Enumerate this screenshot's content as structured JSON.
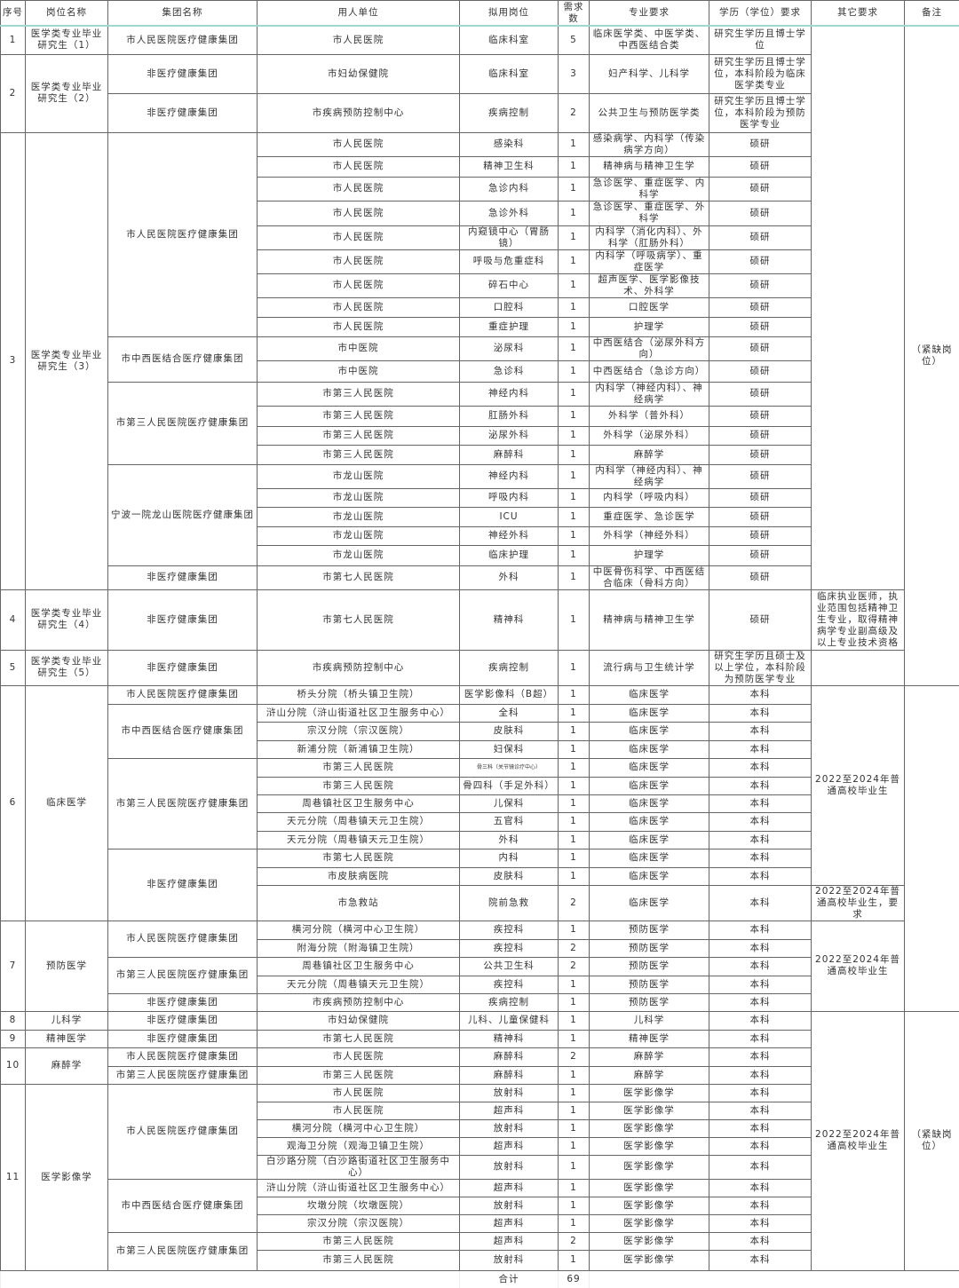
{
  "headers": [
    "序号",
    "岗位名称",
    "集团名称",
    "用人单位",
    "拟用岗位",
    "需求数",
    "专业要求",
    "学历（学位）要求",
    "其它要求",
    "备注"
  ],
  "jobs": [
    {
      "no": "1",
      "position": "医学类专业毕业研究生（1）",
      "groups": [
        {
          "name": "市人民医院医疗健康集团",
          "rows": [
            {
              "unit": "市人民医院",
              "post": "临床科室",
              "count": "5",
              "major": "临床医学类、中医学类、中西医结合类",
              "degree": "研究生学历且博士学位"
            }
          ]
        }
      ]
    },
    {
      "no": "2",
      "position": "医学类专业毕业研究生（2）",
      "groups": [
        {
          "name": "非医疗健康集团",
          "rows": [
            {
              "unit": "市妇幼保健院",
              "post": "临床科室",
              "count": "3",
              "major": "妇产科学、儿科学",
              "degree": "研究生学历且博士学位，本科阶段为临床医学类专业"
            }
          ]
        },
        {
          "name": "非医疗健康集团",
          "rows": [
            {
              "unit": "市疾病预防控制中心",
              "post": "疾病控制",
              "count": "2",
              "major": "公共卫生与预防医学类",
              "degree": "研究生学历且博士学位，本科阶段为预防医学专业"
            }
          ]
        }
      ]
    },
    {
      "no": "3",
      "position": "医学类专业毕业研究生（3）",
      "groups": [
        {
          "name": "市人民医院医疗健康集团",
          "rows": [
            {
              "unit": "市人民医院",
              "post": "感染科",
              "count": "1",
              "major": "感染病学、内科学（传染病学方向）",
              "degree": "硕研"
            },
            {
              "unit": "市人民医院",
              "post": "精神卫生科",
              "count": "1",
              "major": "精神病与精神卫生学",
              "degree": "硕研"
            },
            {
              "unit": "市人民医院",
              "post": "急诊内科",
              "count": "1",
              "major": "急诊医学、重症医学、内科学",
              "degree": "硕研"
            },
            {
              "unit": "市人民医院",
              "post": "急诊外科",
              "count": "1",
              "major": "急诊医学、重症医学、外科学",
              "degree": "硕研"
            },
            {
              "unit": "市人民医院",
              "post": "内窥镜中心（胃肠镜）",
              "count": "1",
              "major": "内科学（消化内科）、外科学（肛肠外科）",
              "degree": "硕研"
            },
            {
              "unit": "市人民医院",
              "post": "呼吸与危重症科",
              "count": "1",
              "major": "内科学（呼吸病学）、重症医学",
              "degree": "硕研"
            },
            {
              "unit": "市人民医院",
              "post": "碎石中心",
              "count": "1",
              "major": "超声医学、医学影像技术、外科学",
              "degree": "硕研"
            },
            {
              "unit": "市人民医院",
              "post": "口腔科",
              "count": "1",
              "major": "口腔医学",
              "degree": "硕研"
            },
            {
              "unit": "市人民医院",
              "post": "重症护理",
              "count": "1",
              "major": "护理学",
              "degree": "硕研"
            }
          ]
        },
        {
          "name": "市中西医结合医疗健康集团",
          "rows": [
            {
              "unit": "市中医院",
              "post": "泌尿科",
              "count": "1",
              "major": "中西医结合（泌尿外科方向）",
              "degree": "硕研"
            },
            {
              "unit": "市中医院",
              "post": "急诊科",
              "count": "1",
              "major": "中西医结合（急诊方向）",
              "degree": "硕研"
            }
          ]
        },
        {
          "name": "市第三人民医院医疗健康集团",
          "rows": [
            {
              "unit": "市第三人民医院",
              "post": "神经内科",
              "count": "1",
              "major": "内科学（神经内科）、神经病学",
              "degree": "硕研"
            },
            {
              "unit": "市第三人民医院",
              "post": "肛肠外科",
              "count": "1",
              "major": "外科学（普外科）",
              "degree": "硕研"
            },
            {
              "unit": "市第三人民医院",
              "post": "泌尿外科",
              "count": "1",
              "major": "外科学（泌尿外科）",
              "degree": "硕研"
            },
            {
              "unit": "市第三人民医院",
              "post": "麻醉科",
              "count": "1",
              "major": "麻醉学",
              "degree": "硕研"
            }
          ]
        },
        {
          "name": "宁波一院龙山医院医疗健康集团",
          "rows": [
            {
              "unit": "市龙山医院",
              "post": "神经内科",
              "count": "1",
              "major": "内科学（神经内科）、神经病学",
              "degree": "硕研"
            },
            {
              "unit": "市龙山医院",
              "post": "呼吸内科",
              "count": "1",
              "major": "内科学（呼吸内科）",
              "degree": "硕研"
            },
            {
              "unit": "市龙山医院",
              "post": "ICU",
              "count": "1",
              "major": "重症医学、急诊医学",
              "degree": "硕研"
            },
            {
              "unit": "市龙山医院",
              "post": "神经外科",
              "count": "1",
              "major": "外科学（神经外科）",
              "degree": "硕研"
            },
            {
              "unit": "市龙山医院",
              "post": "临床护理",
              "count": "1",
              "major": "护理学",
              "degree": "硕研"
            }
          ]
        },
        {
          "name": "非医疗健康集团",
          "rows": [
            {
              "unit": "市第七人民医院",
              "post": "外科",
              "count": "1",
              "major": "中医骨伤科学、中西医结合临床（骨科方向）",
              "degree": "硕研"
            }
          ]
        }
      ]
    },
    {
      "no": "4",
      "position": "医学类专业毕业研究生（4）",
      "groups": [
        {
          "name": "非医疗健康集团",
          "rows": [
            {
              "unit": "市第七人民医院",
              "post": "精神科",
              "count": "1",
              "major": "精神病与精神卫生学",
              "degree": "硕研"
            }
          ]
        }
      ]
    },
    {
      "no": "5",
      "position": "医学类专业毕业研究生（5）",
      "groups": [
        {
          "name": "非医疗健康集团",
          "rows": [
            {
              "unit": "市疾病预防控制中心",
              "post": "疾病控制",
              "count": "1",
              "major": "流行病与卫生统计学",
              "degree": "研究生学历且硕士及以上学位，本科阶段为预防医学专业"
            }
          ]
        }
      ]
    },
    {
      "no": "6",
      "position": "临床医学",
      "groups": [
        {
          "name": "市人民医院医疗健康集团",
          "rows": [
            {
              "unit": "桥头分院（桥头镇卫生院）",
              "post": "医学影像科（B超）",
              "count": "1",
              "major": "临床医学",
              "degree": "本科"
            }
          ]
        },
        {
          "name": "市中西医结合医疗健康集团",
          "rows": [
            {
              "unit": "浒山分院（浒山街道社区卫生服务中心）",
              "post": "全科",
              "count": "1",
              "major": "临床医学",
              "degree": "本科"
            },
            {
              "unit": "宗汉分院（宗汉医院）",
              "post": "皮肤科",
              "count": "1",
              "major": "临床医学",
              "degree": "本科"
            },
            {
              "unit": "新浦分院（新浦镇卫生院）",
              "post": "妇保科",
              "count": "1",
              "major": "临床医学",
              "degree": "本科"
            }
          ]
        },
        {
          "name": "市第三人民医院医疗健康集团",
          "rows": [
            {
              "unit": "市第三人民医院",
              "post": "骨三科（关节镜诊疗中心）",
              "count": "1",
              "major": "临床医学",
              "degree": "本科",
              "small": true
            },
            {
              "unit": "市第三人民医院",
              "post": "骨四科（手足外科）",
              "count": "1",
              "major": "临床医学",
              "degree": "本科"
            },
            {
              "unit": "周巷镇社区卫生服务中心",
              "post": "儿保科",
              "count": "1",
              "major": "临床医学",
              "degree": "本科"
            },
            {
              "unit": "天元分院（周巷镇天元卫生院）",
              "post": "五官科",
              "count": "1",
              "major": "临床医学",
              "degree": "本科"
            },
            {
              "unit": "天元分院（周巷镇天元卫生院）",
              "post": "外科",
              "count": "1",
              "major": "临床医学",
              "degree": "本科"
            }
          ]
        },
        {
          "name": "非医疗健康集团",
          "rows": [
            {
              "unit": "市第七人民医院",
              "post": "内科",
              "count": "1",
              "major": "临床医学",
              "degree": "本科"
            },
            {
              "unit": "市皮肤病医院",
              "post": "皮肤科",
              "count": "1",
              "major": "临床医学",
              "degree": "本科"
            },
            {
              "unit": "市急救站",
              "post": "院前急救",
              "count": "2",
              "major": "临床医学",
              "degree": "本科"
            }
          ]
        }
      ]
    },
    {
      "no": "7",
      "position": "预防医学",
      "groups": [
        {
          "name": "市人民医院医疗健康集团",
          "rows": [
            {
              "unit": "横河分院（横河中心卫生院）",
              "post": "疾控科",
              "count": "1",
              "major": "预防医学",
              "degree": "本科"
            },
            {
              "unit": "附海分院（附海镇卫生院）",
              "post": "疾控科",
              "count": "2",
              "major": "预防医学",
              "degree": "本科"
            }
          ]
        },
        {
          "name": "市第三人民医院医疗健康集团",
          "rows": [
            {
              "unit": "周巷镇社区卫生服务中心",
              "post": "公共卫生科",
              "count": "2",
              "major": "预防医学",
              "degree": "本科"
            },
            {
              "unit": "天元分院（周巷镇天元卫生院）",
              "post": "疾控科",
              "count": "1",
              "major": "预防医学",
              "degree": "本科"
            }
          ]
        },
        {
          "name": "非医疗健康集团",
          "rows": [
            {
              "unit": "市疾病预防控制中心",
              "post": "疾病控制",
              "count": "1",
              "major": "预防医学",
              "degree": "本科"
            }
          ]
        }
      ]
    },
    {
      "no": "8",
      "position": "儿科学",
      "groups": [
        {
          "name": "非医疗健康集团",
          "rows": [
            {
              "unit": "市妇幼保健院",
              "post": "儿科、儿童保健科",
              "count": "1",
              "major": "儿科学",
              "degree": "本科"
            }
          ]
        }
      ]
    },
    {
      "no": "9",
      "position": "精神医学",
      "groups": [
        {
          "name": "非医疗健康集团",
          "rows": [
            {
              "unit": "市第七人民医院",
              "post": "精神科",
              "count": "1",
              "major": "精神医学",
              "degree": "本科"
            }
          ]
        }
      ]
    },
    {
      "no": "10",
      "position": "麻醉学",
      "groups": [
        {
          "name": "市人民医院医疗健康集团",
          "rows": [
            {
              "unit": "市人民医院",
              "post": "麻醉科",
              "count": "2",
              "major": "麻醉学",
              "degree": "本科"
            }
          ]
        },
        {
          "name": "市第三人民医院医疗健康集团",
          "rows": [
            {
              "unit": "市第三人民医院",
              "post": "麻醉科",
              "count": "1",
              "major": "麻醉学",
              "degree": "本科"
            }
          ]
        }
      ]
    },
    {
      "no": "11",
      "position": "医学影像学",
      "groups": [
        {
          "name": "市人民医院医疗健康集团",
          "rows": [
            {
              "unit": "市人民医院",
              "post": "放射科",
              "count": "1",
              "major": "医学影像学",
              "degree": "本科"
            },
            {
              "unit": "市人民医院",
              "post": "超声科",
              "count": "1",
              "major": "医学影像学",
              "degree": "本科"
            },
            {
              "unit": "横河分院（横河中心卫生院）",
              "post": "放射科",
              "count": "1",
              "major": "医学影像学",
              "degree": "本科"
            },
            {
              "unit": "观海卫分院（观海卫镇卫生院）",
              "post": "超声科",
              "count": "1",
              "major": "医学影像学",
              "degree": "本科"
            },
            {
              "unit": "白沙路分院（白沙路街道社区卫生服务中心）",
              "post": "放射科",
              "count": "1",
              "major": "医学影像学",
              "degree": "本科"
            }
          ]
        },
        {
          "name": "市中西医结合医疗健康集团",
          "rows": [
            {
              "unit": "浒山分院（浒山街道社区卫生服务中心）",
              "post": "超声科",
              "count": "1",
              "major": "医学影像学",
              "degree": "本科"
            },
            {
              "unit": "坎墩分院（坎墩医院）",
              "post": "放射科",
              "count": "1",
              "major": "医学影像学",
              "degree": "本科"
            },
            {
              "unit": "宗汉分院（宗汉医院）",
              "post": "超声科",
              "count": "1",
              "major": "医学影像学",
              "degree": "本科"
            }
          ]
        },
        {
          "name": "市第三人民医院医疗健康集团",
          "rows": [
            {
              "unit": "市第三人民医院",
              "post": "超声科",
              "count": "2",
              "major": "医学影像学",
              "degree": "本科"
            },
            {
              "unit": "市第三人民医院",
              "post": "放射科",
              "count": "1",
              "major": "医学影像学",
              "degree": "本科"
            }
          ]
        }
      ]
    }
  ],
  "other_requirements": [
    {
      "text": "",
      "rows": 24
    },
    {
      "text": "临床执业医师，执业范围包括精神卫生专业，取得精神病学专业副高级及以上专业技术资格",
      "rows": 1
    },
    {
      "text": "",
      "rows": 1
    },
    {
      "text": "2022至2024年普通高校毕业生",
      "rows": 11
    },
    {
      "text": "2022至2024年普通高校毕业生，要求",
      "rows": 1
    },
    {
      "text": "2022至2024年普通高校毕业生",
      "rows": 5
    },
    {
      "text": "2022至2024年普通高校毕业生",
      "rows": 14
    }
  ],
  "notes": [
    {
      "text": "（紧缺岗位）",
      "rows": 26
    },
    {
      "text": "",
      "rows": 17
    },
    {
      "text": "（紧缺岗位）",
      "rows": 14
    }
  ],
  "total": {
    "label": "合计",
    "count": "69"
  }
}
